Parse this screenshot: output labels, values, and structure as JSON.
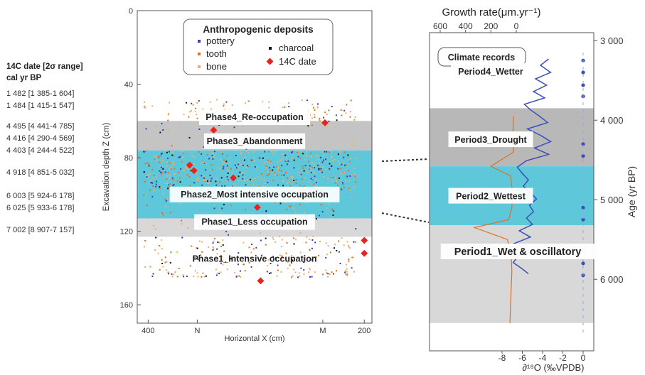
{
  "date_table": {
    "header_line1": "14C date [2σ range]",
    "header_line2": "cal yr BP",
    "rows": [
      "1 482 [1 385-1 604]",
      "1 484 [1 415-1 547]",
      "4 495 [4 441-4 785]",
      "4 416 [4 290-4 569]",
      "4 403 [4 244-4 522]",
      "4 918 [4 851-5 032]",
      "6 003 [5 924-6 178]",
      "6 025 [5 933-6 178]",
      "7 002 [8 907-7 157]"
    ]
  },
  "chart_data": [
    {
      "type": "scatter",
      "xlabel": "Horizontal X (cm)",
      "ylabel": "Excavation depth Z (cm)",
      "x_ticks": [
        "400",
        "N",
        "M",
        "200"
      ],
      "y_ticks": [
        "0",
        "40",
        "80",
        "120",
        "160"
      ],
      "ylim": [
        0,
        170
      ],
      "xlim": [
        410,
        195
      ],
      "legend": {
        "title": "Anthropogenic deposits",
        "entries": [
          {
            "label": "pottery",
            "color": "#3c3ca8"
          },
          {
            "label": "charcoal",
            "color": "#111111"
          },
          {
            "label": "tooth",
            "color": "#e07020"
          },
          {
            "label": "14C date",
            "color": "#e8231e"
          },
          {
            "label": "bone",
            "color": "#e8b070"
          }
        ]
      },
      "bands": [
        {
          "from": 60,
          "to": 76,
          "color": "#c4c4c4"
        },
        {
          "from": 76,
          "to": 113,
          "color": "#5ec8da"
        },
        {
          "from": 113,
          "to": 123,
          "color": "#d8d8d8"
        }
      ],
      "phases": [
        {
          "label": "Phase4_Re-occupation",
          "depth": 58
        },
        {
          "label": "Phase3_Abandonment",
          "depth": 71
        },
        {
          "label": "Phase2_Most intensive occupation",
          "depth": 100
        },
        {
          "label": "Phase1_Less occupation",
          "depth": 115
        },
        {
          "label": "Phase1_Intensive occupation",
          "depth": 135
        }
      ],
      "c14_points": [
        {
          "x": 362,
          "z": 84
        },
        {
          "x": 358,
          "z": 87
        },
        {
          "x": 340,
          "z": 65
        },
        {
          "x": 322,
          "z": 91
        },
        {
          "x": 300,
          "z": 107
        },
        {
          "x": 297,
          "z": 147
        },
        {
          "x": 238,
          "z": 61
        },
        {
          "x": 202,
          "z": 125
        },
        {
          "x": 202,
          "z": 132
        }
      ],
      "sherd_density": {
        "pottery": 0.2,
        "charcoal": 0.08,
        "tooth": 0.24,
        "bone": 0.48
      }
    },
    {
      "type": "line",
      "title": "Growth rate(μm.yr⁻¹)",
      "panel_title": "Climate records",
      "xlabel": "∂¹⁸O (‰VPDB)",
      "ylabel": "Age (yr BP)",
      "growth_ticks": [
        "600",
        "400",
        "200",
        "0"
      ],
      "d18o_ticks": [
        "-8",
        "-6",
        "-4",
        "-2",
        "0"
      ],
      "age_ticks": [
        "3 000",
        "4 000",
        "5 000",
        "6 000"
      ],
      "age_lim": [
        2900,
        6900
      ],
      "periods": [
        {
          "label": "Period4_Wetter",
          "age": 3380
        },
        {
          "label": "Period3_Drought",
          "age": 4240
        },
        {
          "label": "Period2_Wettest",
          "age": 4950
        },
        {
          "label": "Period1_Wet & oscillatory",
          "age": 5650
        }
      ],
      "bands": [
        {
          "from": 3850,
          "to": 4580,
          "color": "#b8b8b8"
        },
        {
          "from": 4580,
          "to": 5320,
          "color": "#5ec8da"
        },
        {
          "from": 5320,
          "to": 6550,
          "color": "#d8d8d8"
        }
      ],
      "d18o_series": {
        "name": "δ18O",
        "color": "#3a4fb8",
        "age": [
          3230,
          3310,
          3400,
          3480,
          3560,
          3640,
          3720,
          3800,
          3870,
          3950,
          4030,
          4110,
          4190,
          4270,
          4350,
          4430,
          4510,
          4590,
          4670,
          4750,
          4830,
          4910,
          4990,
          5070,
          5150,
          5230,
          5310,
          5390,
          5470,
          5550,
          5630,
          5710,
          5790,
          5870,
          5930
        ],
        "values": [
          -3.4,
          -4.2,
          -3.2,
          -4.7,
          -3.6,
          -4.9,
          -3.8,
          -5.8,
          -5.2,
          -4.3,
          -3.5,
          -5.5,
          -4.2,
          -3.2,
          -4.8,
          -3.4,
          -5.6,
          -6.5,
          -6.0,
          -5.4,
          -5.9,
          -5.2,
          -4.6,
          -5.3,
          -4.9,
          -5.6,
          -5.0,
          -6.3,
          -5.2,
          -6.8,
          -5.4,
          -6.4,
          -6.9,
          -6.0,
          -5.4
        ]
      },
      "growth_series": {
        "name": "Growth rate",
        "color": "#e07020",
        "age": [
          3950,
          4100,
          4250,
          4400,
          4580,
          4700,
          4900,
          5100,
          5250,
          5350,
          5500,
          5700,
          5900,
          6100,
          6300,
          6550
        ],
        "values": [
          20,
          25,
          30,
          20,
          200,
          45,
          30,
          35,
          60,
          330,
          70,
          40,
          35,
          40,
          45,
          50
        ]
      }
    }
  ]
}
